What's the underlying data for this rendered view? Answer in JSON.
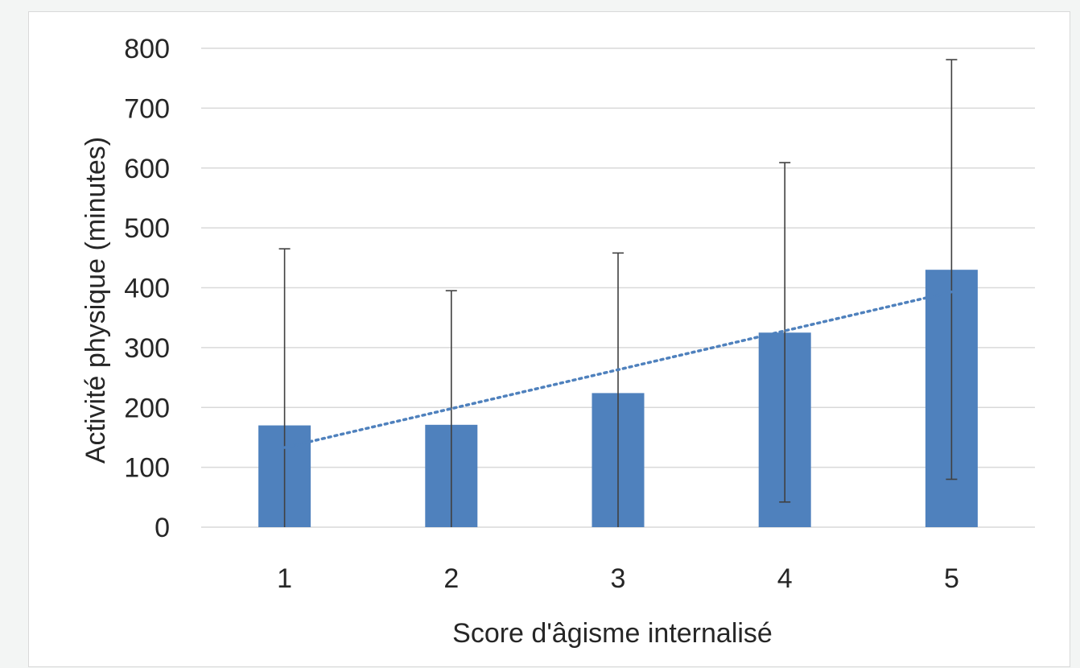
{
  "chart_data": {
    "type": "bar",
    "xlabel": "Score d'âgisme internalisé",
    "ylabel": "Activité physique (minutes)",
    "categories": [
      "1",
      "2",
      "3",
      "4",
      "5"
    ],
    "values": [
      170,
      171,
      224,
      325,
      430
    ],
    "error_bars": [
      {
        "low": 0,
        "high": 465
      },
      {
        "low": 0,
        "high": 395
      },
      {
        "low": 0,
        "high": 458
      },
      {
        "low": 42,
        "high": 609
      },
      {
        "low": 80,
        "high": 781
      }
    ],
    "trendline": {
      "type": "linear",
      "style": "dotted",
      "start": {
        "x": 1,
        "y": 133
      },
      "end": {
        "x": 5,
        "y": 393
      }
    },
    "ylim": [
      0,
      800
    ],
    "yticks": [
      "0",
      "100",
      "200",
      "300",
      "400",
      "500",
      "600",
      "700",
      "800"
    ],
    "grid": true,
    "legend": "none",
    "colors": {
      "bar": "#4f81bd",
      "trendline": "#4f81bd",
      "error_bar": "#404040",
      "grid": "#d9d9d9"
    }
  }
}
